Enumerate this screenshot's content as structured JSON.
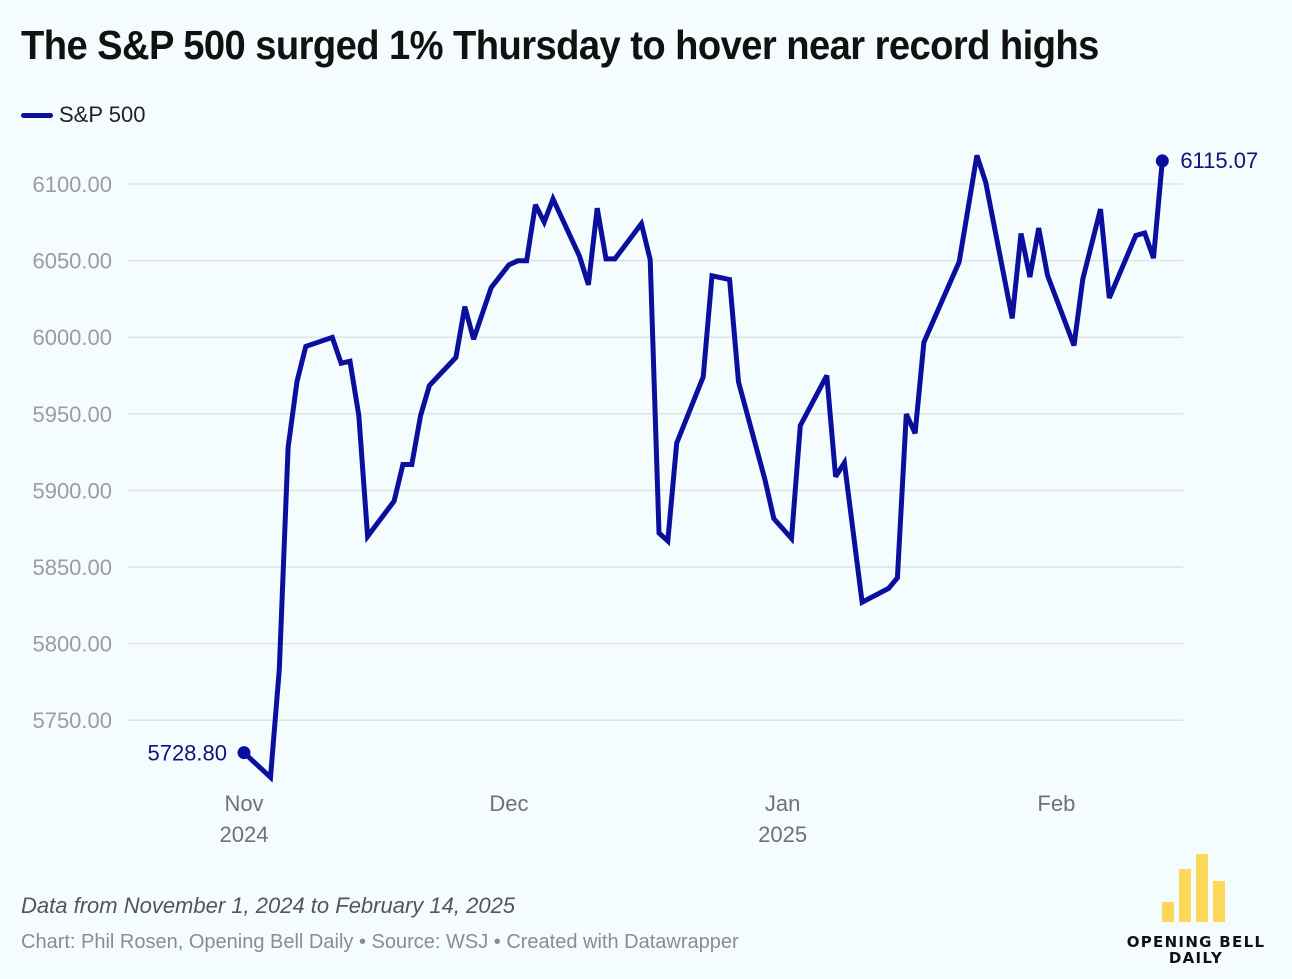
{
  "colors": {
    "line": "#0a0f9e",
    "label": "#12127a",
    "grid": "#dde3e6",
    "logo_bar": "#fbd85a"
  },
  "header": {
    "title": "The S&P 500 surged 1% Thursday to hover near record highs"
  },
  "legend": {
    "items": [
      {
        "label": "S&P 500",
        "icon": "line-swatch"
      }
    ]
  },
  "chart_data": {
    "type": "line",
    "title": "The S&P 500 surged 1% Thursday to hover near record highs",
    "xlabel": "",
    "ylabel": "",
    "ylim": [
      5700,
      6130
    ],
    "grid": true,
    "legend_position": "top-left",
    "y_ticks": [
      "6100.00",
      "6050.00",
      "6000.00",
      "5950.00",
      "5900.00",
      "5850.00",
      "5800.00",
      "5750.00"
    ],
    "y_tick_values": [
      6100,
      6050,
      6000,
      5950,
      5900,
      5850,
      5800,
      5750
    ],
    "x_ticks": [
      {
        "day": 0,
        "label": "Nov",
        "sublabel": "2024"
      },
      {
        "day": 30,
        "label": "Dec",
        "sublabel": ""
      },
      {
        "day": 61,
        "label": "Jan",
        "sublabel": "2025"
      },
      {
        "day": 92,
        "label": "Feb",
        "sublabel": ""
      }
    ],
    "x_domain_days": [
      0,
      105
    ],
    "x_origin": "2024-11-01",
    "series": [
      {
        "name": "S&P 500",
        "start_label": "5728.80",
        "end_label": "6115.07",
        "points": [
          [
            0,
            5728.8
          ],
          [
            3,
            5712.7
          ],
          [
            4,
            5783.1
          ],
          [
            5,
            5928.0
          ],
          [
            6,
            5971.1
          ],
          [
            7,
            5994.0
          ],
          [
            10,
            5999.9
          ],
          [
            11,
            5983.0
          ],
          [
            12,
            5984.3
          ],
          [
            13,
            5949.0
          ],
          [
            14,
            5870.0
          ],
          [
            17,
            5893.0
          ],
          [
            18,
            5916.9
          ],
          [
            19,
            5916.9
          ],
          [
            20,
            5948.9
          ],
          [
            21,
            5968.5
          ],
          [
            24,
            5986.8
          ],
          [
            25,
            6020.0
          ],
          [
            26,
            5998.7
          ],
          [
            28,
            6032.4
          ],
          [
            30,
            6047.2
          ],
          [
            31,
            6049.9
          ],
          [
            32,
            6049.9
          ],
          [
            33,
            6086.5
          ],
          [
            34,
            6075.1
          ],
          [
            35,
            6090.3
          ],
          [
            38,
            6052.9
          ],
          [
            39,
            6034.2
          ],
          [
            40,
            6084.2
          ],
          [
            41,
            6051.1
          ],
          [
            42,
            6051.1
          ],
          [
            45,
            6074.1
          ],
          [
            46,
            6050.6
          ],
          [
            47,
            5872.2
          ],
          [
            48,
            5867.0
          ],
          [
            49,
            5930.9
          ],
          [
            52,
            5974.1
          ],
          [
            53,
            6040.1
          ],
          [
            55,
            6037.6
          ],
          [
            56,
            5970.8
          ],
          [
            59,
            5906.9
          ],
          [
            60,
            5881.6
          ],
          [
            62,
            5868.6
          ],
          [
            63,
            5942.3
          ],
          [
            66,
            5975.0
          ],
          [
            67,
            5909.0
          ],
          [
            68,
            5918.0
          ],
          [
            70,
            5827.0
          ],
          [
            73,
            5836.0
          ],
          [
            74,
            5842.9
          ],
          [
            75,
            5949.9
          ],
          [
            76,
            5937.3
          ],
          [
            77,
            5996.7
          ],
          [
            81,
            6049.2
          ],
          [
            83,
            6118.7
          ],
          [
            84,
            6101.2
          ],
          [
            87,
            6012.3
          ],
          [
            88,
            6067.7
          ],
          [
            89,
            6039.3
          ],
          [
            90,
            6071.2
          ],
          [
            91,
            6040.5
          ],
          [
            94,
            5994.6
          ],
          [
            95,
            6037.9
          ],
          [
            97,
            6083.6
          ],
          [
            98,
            6025.6
          ],
          [
            101,
            6066.4
          ],
          [
            102,
            6068.0
          ],
          [
            103,
            6051.6
          ],
          [
            104,
            6115.07
          ]
        ]
      }
    ]
  },
  "footer": {
    "note": "Data from November 1, 2024 to February 14, 2025",
    "credit": "Chart: Phil Rosen, Opening Bell Daily • Source: WSJ • Created with Datawrapper"
  },
  "logo": {
    "line1": "OPENING BELL",
    "line2": "DAILY",
    "bar_heights": [
      0.3,
      0.78,
      1.0,
      0.6
    ]
  }
}
